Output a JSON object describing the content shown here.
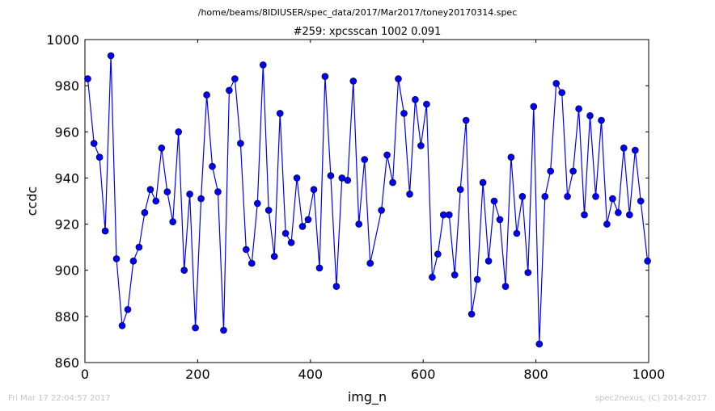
{
  "footer": {
    "timestamp": "Fri Mar 17 22:04:57 2017",
    "credit": "spec2nexus, (C) 2014-2017"
  },
  "chart_data": {
    "type": "line",
    "suptitle": "/home/beams/8IDIUSER/spec_data/2017/Mar2017/toney20170314.spec",
    "title": "#259: xpcsscan 1002 0.091",
    "xlabel": "img_n",
    "ylabel": "ccdc",
    "xlim": [
      0,
      1000
    ],
    "ylim": [
      860,
      1000
    ],
    "xticks": [
      0,
      200,
      400,
      600,
      800,
      1000
    ],
    "yticks": [
      860,
      880,
      900,
      920,
      940,
      960,
      980,
      1000
    ],
    "grid": false,
    "line_color": "#0000ff",
    "marker_color": "#0000ff",
    "series": [
      {
        "x": [
          5,
          16,
          26,
          36,
          46,
          56,
          66,
          76,
          86,
          96,
          106,
          116,
          126,
          136,
          146,
          156,
          166,
          176,
          186,
          196,
          206,
          216,
          226,
          236,
          246,
          256,
          266,
          276,
          286,
          296,
          306,
          316,
          326,
          336,
          346,
          356,
          366,
          376,
          386,
          396,
          406,
          416,
          426,
          436,
          446,
          456,
          466,
          476,
          486,
          496,
          506,
          526,
          536,
          546,
          556,
          566,
          576,
          586,
          596,
          606,
          616,
          626,
          636,
          646,
          656,
          666,
          676,
          686,
          696,
          706,
          716,
          726,
          736,
          746,
          756,
          766,
          776,
          786,
          796,
          806,
          816,
          826,
          836,
          846,
          856,
          866,
          876,
          886,
          896,
          906,
          916,
          926,
          936,
          946,
          956,
          966,
          976,
          986,
          998
        ],
        "y": [
          983,
          955,
          949,
          917,
          993,
          905,
          876,
          883,
          904,
          910,
          925,
          935,
          930,
          953,
          934,
          921,
          960,
          900,
          933,
          875,
          931,
          976,
          945,
          934,
          874,
          978,
          983,
          955,
          909,
          903,
          929,
          989,
          926,
          906,
          968,
          916,
          912,
          940,
          919,
          922,
          935,
          901,
          984,
          941,
          893,
          940,
          939,
          982,
          920,
          948,
          903,
          926,
          950,
          938,
          983,
          968,
          933,
          974,
          954,
          972,
          897,
          907,
          924,
          924,
          898,
          935,
          965,
          881,
          896,
          938,
          904,
          930,
          922,
          893,
          949,
          916,
          932,
          899,
          971,
          868,
          932,
          943,
          981,
          977,
          932,
          943,
          970,
          924,
          967,
          932,
          965,
          920,
          931,
          925,
          953,
          924,
          952,
          930,
          904
        ]
      }
    ]
  }
}
